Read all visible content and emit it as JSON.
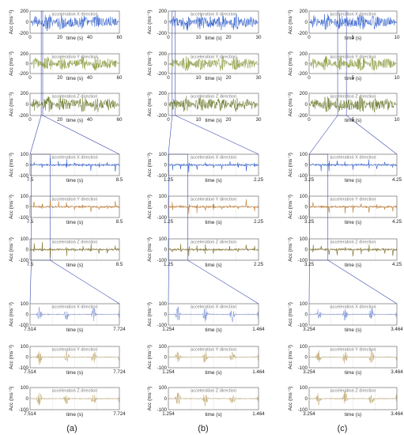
{
  "figure": {
    "captions": [
      "(a)",
      "(b)",
      "(c)"
    ],
    "colors": {
      "x": "#2f5fd0",
      "y_full": "#8a9a3a",
      "z_full": "#6a7a2a",
      "y_mid": "#c27a2e",
      "z_mid": "#7a6a20",
      "fine": "#c9b482",
      "fine_x": "#8a9fdc",
      "frame": "#555555",
      "zoom_line": "#3b4bb0",
      "grid": "#dddddd"
    }
  },
  "chart_data": [
    {
      "type": "line",
      "col": 0,
      "row": 0,
      "title": "acceleration X direction",
      "xlabel": "time  (s)",
      "ylabel": "Acc (ms⁻²)",
      "xlim": [
        0,
        60
      ],
      "ylim": [
        -200,
        200
      ],
      "xticks": [
        "0",
        "20",
        "40",
        "60"
      ],
      "yticks": [
        "200",
        "0",
        "-200"
      ],
      "profile": "full",
      "color": "x"
    },
    {
      "type": "line",
      "col": 0,
      "row": 1,
      "title": "acceleration Y direction",
      "xlabel": "time  (s)",
      "ylabel": "Acc (ms⁻²)",
      "xlim": [
        0,
        60
      ],
      "ylim": [
        -200,
        200
      ],
      "xticks": [
        "0",
        "20",
        "40",
        "60"
      ],
      "yticks": [
        "200",
        "0",
        "-200"
      ],
      "profile": "full",
      "color": "y_full"
    },
    {
      "type": "line",
      "col": 0,
      "row": 2,
      "title": "acceleration Z direction",
      "xlabel": "time  (s)",
      "ylabel": "Acc (ms⁻²)",
      "xlim": [
        0,
        60
      ],
      "ylim": [
        -200,
        200
      ],
      "xticks": [
        "0",
        "20",
        "40",
        "60"
      ],
      "yticks": [
        "200",
        "0",
        "-200"
      ],
      "profile": "full",
      "color": "z_full"
    },
    {
      "type": "line",
      "col": 1,
      "row": 0,
      "title": "acceleration X direction",
      "xlabel": "time  (s)",
      "ylabel": "Acc (ms⁻²)",
      "xlim": [
        0,
        30
      ],
      "ylim": [
        -200,
        200
      ],
      "xticks": [
        "0",
        "10",
        "20",
        "30"
      ],
      "yticks": [
        "200",
        "0",
        "-200"
      ],
      "profile": "full",
      "color": "x"
    },
    {
      "type": "line",
      "col": 1,
      "row": 1,
      "title": "acceleration Y direction",
      "xlabel": "time  (s)",
      "ylabel": "Acc (ms⁻²)",
      "xlim": [
        0,
        30
      ],
      "ylim": [
        -200,
        200
      ],
      "xticks": [
        "0",
        "10",
        "20",
        "30"
      ],
      "yticks": [
        "200",
        "0",
        "-200"
      ],
      "profile": "full",
      "color": "y_full"
    },
    {
      "type": "line",
      "col": 1,
      "row": 2,
      "title": "acceleration Z direction",
      "xlabel": "time  (s)",
      "ylabel": "Acc (ms⁻²)",
      "xlim": [
        0,
        30
      ],
      "ylim": [
        -200,
        200
      ],
      "xticks": [
        "0",
        "10",
        "20",
        "30"
      ],
      "yticks": [
        "200",
        "0",
        "-200"
      ],
      "profile": "full",
      "color": "z_full"
    },
    {
      "type": "line",
      "col": 2,
      "row": 0,
      "title": "acceleration X direction",
      "xlabel": "time  (s)",
      "ylabel": "Acc (ms⁻²)",
      "xlim": [
        0,
        10
      ],
      "ylim": [
        -200,
        200
      ],
      "xticks": [
        "0",
        "5",
        "10"
      ],
      "yticks": [
        "200",
        "0",
        "-200"
      ],
      "profile": "full",
      "color": "x"
    },
    {
      "type": "line",
      "col": 2,
      "row": 1,
      "title": "acceleration Y direction",
      "xlabel": "time  (s)",
      "ylabel": "Acc (ms⁻²)",
      "xlim": [
        0,
        10
      ],
      "ylim": [
        -200,
        200
      ],
      "xticks": [
        "0",
        "5",
        "10"
      ],
      "yticks": [
        "200",
        "0",
        "-200"
      ],
      "profile": "full",
      "color": "y_full"
    },
    {
      "type": "line",
      "col": 2,
      "row": 2,
      "title": "acceleration Z direction",
      "xlabel": "time  (s)",
      "ylabel": "Acc (ms⁻²)",
      "xlim": [
        0,
        10
      ],
      "ylim": [
        -200,
        200
      ],
      "xticks": [
        "0",
        "5",
        "10"
      ],
      "yticks": [
        "200",
        "0",
        "-200"
      ],
      "profile": "full",
      "color": "z_full"
    },
    {
      "type": "line",
      "col": 0,
      "row": 3,
      "title": "acceleration X direction",
      "xlabel": "time  (s)",
      "ylabel": "Acc (ms⁻²)",
      "xlim": [
        7.5,
        8.5
      ],
      "ylim": [
        -100,
        100
      ],
      "xticks": [
        "7.5",
        "8.5"
      ],
      "yticks": [
        "100",
        "0",
        "-100"
      ],
      "profile": "pulses",
      "color": "x",
      "zoom": [
        7.5,
        8.5
      ]
    },
    {
      "type": "line",
      "col": 0,
      "row": 4,
      "title": "acceleration Y direction",
      "xlabel": "time  (s)",
      "ylabel": "Acc (ms⁻²)",
      "xlim": [
        7.5,
        8.5
      ],
      "ylim": [
        -100,
        100
      ],
      "xticks": [
        "7.5",
        "8.5"
      ],
      "yticks": [
        "100",
        "0",
        "-100"
      ],
      "profile": "pulses",
      "color": "y_mid"
    },
    {
      "type": "line",
      "col": 0,
      "row": 5,
      "title": "acceleration Z direction",
      "xlabel": "time  (s)",
      "ylabel": "Acc (ms⁻²)",
      "xlim": [
        7.5,
        8.5
      ],
      "ylim": [
        -100,
        100
      ],
      "xticks": [
        "7.5",
        "8.5"
      ],
      "yticks": [
        "100",
        "0",
        "-100"
      ],
      "profile": "pulses",
      "color": "z_mid"
    },
    {
      "type": "line",
      "col": 1,
      "row": 3,
      "title": "acceleration X direction",
      "xlabel": "time  (s)",
      "ylabel": "Acc (ms⁻²)",
      "xlim": [
        1.25,
        2.25
      ],
      "ylim": [
        -100,
        100
      ],
      "xticks": [
        "1.25",
        "2.25"
      ],
      "yticks": [
        "100",
        "0",
        "-100"
      ],
      "profile": "pulses",
      "color": "x",
      "zoom": [
        1.25,
        2.25
      ]
    },
    {
      "type": "line",
      "col": 1,
      "row": 4,
      "title": "acceleration Y direction",
      "xlabel": "time  (s)",
      "ylabel": "Acc (ms⁻²)",
      "xlim": [
        1.25,
        2.25
      ],
      "ylim": [
        -100,
        100
      ],
      "xticks": [
        "1.25",
        "2.25"
      ],
      "yticks": [
        "100",
        "0",
        "-100"
      ],
      "profile": "pulses",
      "color": "y_mid"
    },
    {
      "type": "line",
      "col": 1,
      "row": 5,
      "title": "acceleration Z direction",
      "xlabel": "time  (s)",
      "ylabel": "Acc (ms⁻²)",
      "xlim": [
        1.25,
        2.25
      ],
      "ylim": [
        -100,
        100
      ],
      "xticks": [
        "1.25",
        "2.25"
      ],
      "yticks": [
        "100",
        "0",
        "-100"
      ],
      "profile": "pulses",
      "color": "z_mid"
    },
    {
      "type": "line",
      "col": 2,
      "row": 3,
      "title": "acceleration X direction",
      "xlabel": "time  (s)",
      "ylabel": "Acc (ms⁻²)",
      "xlim": [
        3.25,
        4.25
      ],
      "ylim": [
        -100,
        100
      ],
      "xticks": [
        "3.25",
        "4.25"
      ],
      "yticks": [
        "100",
        "0",
        "-100"
      ],
      "profile": "pulses",
      "color": "x",
      "zoom": [
        3.25,
        4.25
      ]
    },
    {
      "type": "line",
      "col": 2,
      "row": 4,
      "title": "acceleration Y direction",
      "xlabel": "time  (s)",
      "ylabel": "Acc (ms⁻²)",
      "xlim": [
        3.25,
        4.25
      ],
      "ylim": [
        -100,
        100
      ],
      "xticks": [
        "3.25",
        "4.25"
      ],
      "yticks": [
        "100",
        "0",
        "-100"
      ],
      "profile": "pulses",
      "color": "y_mid"
    },
    {
      "type": "line",
      "col": 2,
      "row": 5,
      "title": "acceleration Z direction",
      "xlabel": "time  (s)",
      "ylabel": "Acc (ms⁻²)",
      "xlim": [
        3.25,
        4.25
      ],
      "ylim": [
        -100,
        100
      ],
      "xticks": [
        "3.25",
        "4.25"
      ],
      "yticks": [
        "100",
        "0",
        "-100"
      ],
      "profile": "pulses",
      "color": "z_mid"
    },
    {
      "type": "line",
      "col": 0,
      "row": 6,
      "title": "acceleration X direction",
      "xlabel": "time  (s)",
      "ylabel": "Acc (ms⁻²)",
      "xlim": [
        7.514,
        7.724
      ],
      "ylim": [
        -100,
        100
      ],
      "xticks": [
        "7.514",
        "7.724"
      ],
      "yticks": [
        "100",
        "0",
        "-100"
      ],
      "profile": "bursts",
      "color": "fine_x",
      "zoom": [
        7.514,
        7.724
      ]
    },
    {
      "type": "line",
      "col": 0,
      "row": 7,
      "title": "acceleration Y direction",
      "xlabel": "time  (s)",
      "ylabel": "Acc (ms⁻²)",
      "xlim": [
        7.514,
        7.724
      ],
      "ylim": [
        -100,
        100
      ],
      "xticks": [
        "7.514",
        "7.724"
      ],
      "yticks": [
        "100",
        "0",
        "-100"
      ],
      "profile": "bursts",
      "color": "fine"
    },
    {
      "type": "line",
      "col": 0,
      "row": 8,
      "title": "acceleration Z direction",
      "xlabel": "time  (s)",
      "ylabel": "Acc (ms⁻²)",
      "xlim": [
        7.514,
        7.724
      ],
      "ylim": [
        -100,
        100
      ],
      "xticks": [
        "7.514",
        "7.724"
      ],
      "yticks": [
        "100",
        "0",
        "-100"
      ],
      "profile": "bursts",
      "color": "fine"
    },
    {
      "type": "line",
      "col": 1,
      "row": 6,
      "title": "acceleration X direction",
      "xlabel": "time  (s)",
      "ylabel": "Acc (ms⁻²)",
      "xlim": [
        1.254,
        1.464
      ],
      "ylim": [
        -100,
        100
      ],
      "xticks": [
        "1.254",
        "1.464"
      ],
      "yticks": [
        "100",
        "0",
        "-100"
      ],
      "profile": "bursts",
      "color": "fine_x",
      "zoom": [
        1.254,
        1.464
      ]
    },
    {
      "type": "line",
      "col": 1,
      "row": 7,
      "title": "acceleration Y direction",
      "xlabel": "time  (s)",
      "ylabel": "Acc (ms⁻²)",
      "xlim": [
        1.254,
        1.464
      ],
      "ylim": [
        -100,
        100
      ],
      "xticks": [
        "1.254",
        "1.464"
      ],
      "yticks": [
        "100",
        "0",
        "-100"
      ],
      "profile": "bursts",
      "color": "fine"
    },
    {
      "type": "line",
      "col": 1,
      "row": 8,
      "title": "acceleration Z direction",
      "xlabel": "time  (s)",
      "ylabel": "Acc (ms⁻²)",
      "xlim": [
        1.254,
        1.464
      ],
      "ylim": [
        -100,
        100
      ],
      "xticks": [
        "1.254",
        "1.464"
      ],
      "yticks": [
        "100",
        "0",
        "-100"
      ],
      "profile": "bursts",
      "color": "fine"
    },
    {
      "type": "line",
      "col": 2,
      "row": 6,
      "title": "acceleration X direction",
      "xlabel": "time  (s)",
      "ylabel": "Acc (ms⁻²)",
      "xlim": [
        3.254,
        3.464
      ],
      "ylim": [
        -100,
        100
      ],
      "xticks": [
        "3.254",
        "3.464"
      ],
      "yticks": [
        "100",
        "0",
        "-100"
      ],
      "profile": "bursts",
      "color": "fine_x",
      "zoom": [
        3.254,
        3.464
      ]
    },
    {
      "type": "line",
      "col": 2,
      "row": 7,
      "title": "acceleration Y direction",
      "xlabel": "time  (s)",
      "ylabel": "Acc (ms⁻²)",
      "xlim": [
        3.254,
        3.464
      ],
      "ylim": [
        -100,
        100
      ],
      "xticks": [
        "3.254",
        "3.464"
      ],
      "yticks": [
        "100",
        "0",
        "-100"
      ],
      "profile": "bursts",
      "color": "fine"
    },
    {
      "type": "line",
      "col": 2,
      "row": 8,
      "title": "acceleration Z direction",
      "xlabel": "time  (s)",
      "ylabel": "Acc (ms⁻²)",
      "xlim": [
        3.254,
        3.464
      ],
      "ylim": [
        -100,
        100
      ],
      "xticks": [
        "3.254",
        "3.464"
      ],
      "yticks": [
        "100",
        "0",
        "-100"
      ],
      "profile": "bursts",
      "color": "fine"
    }
  ]
}
